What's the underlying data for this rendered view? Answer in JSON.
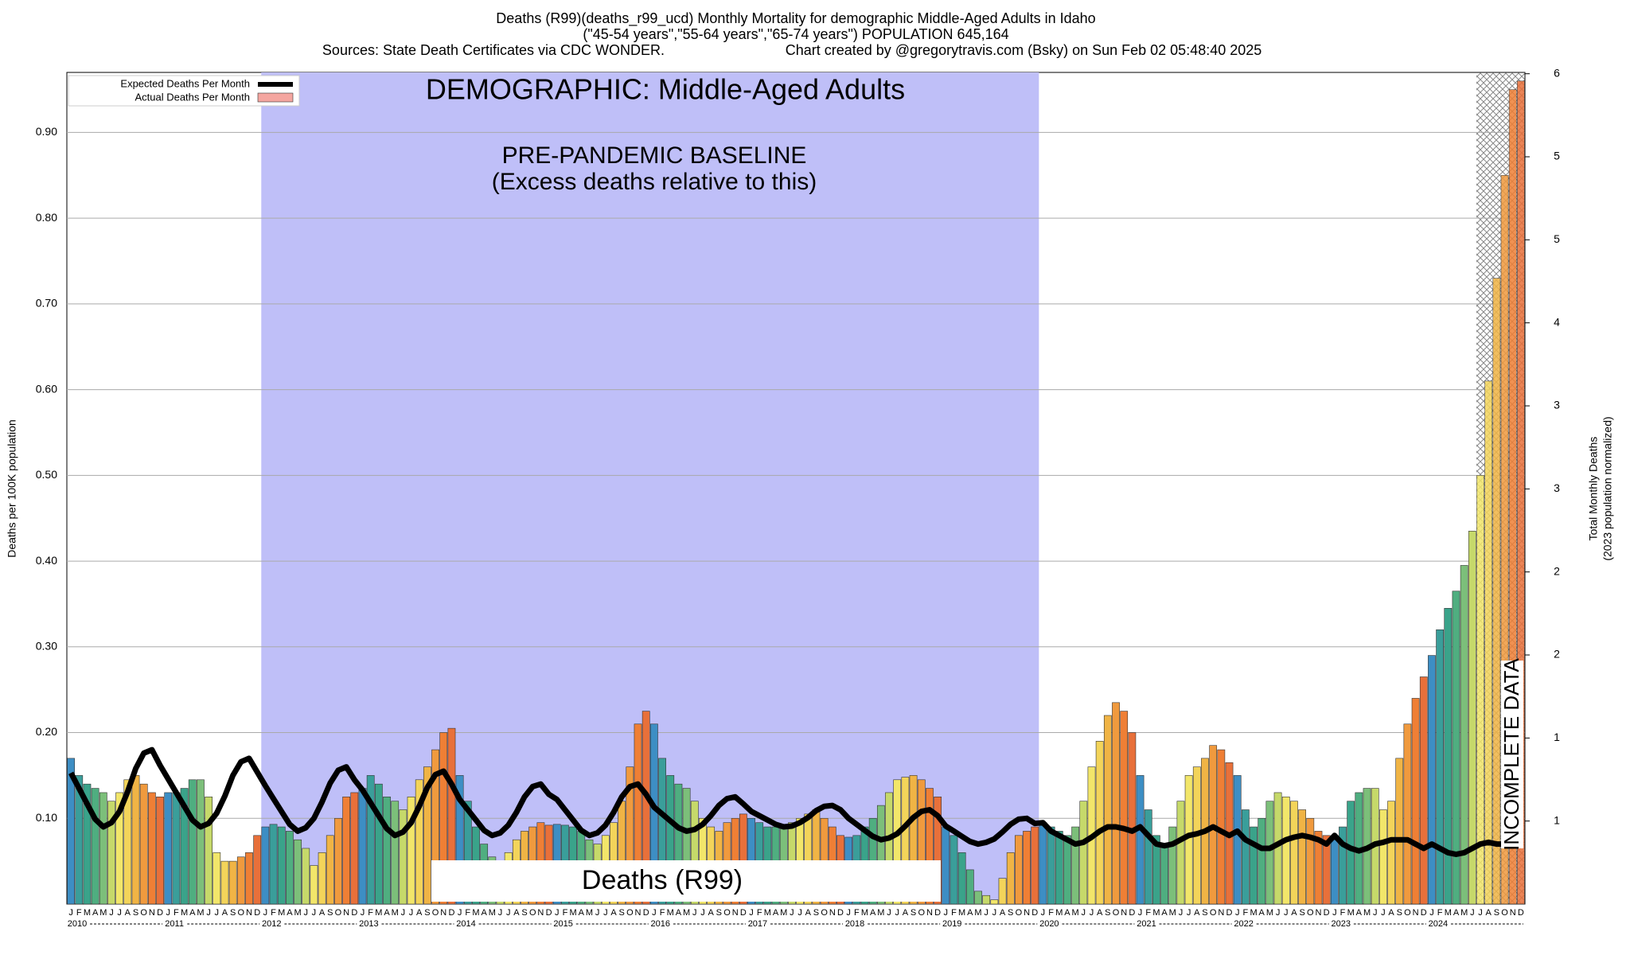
{
  "chart_data": {
    "type": "bar",
    "title": "Deaths (R99)(deaths_r99_ucd) Monthly Mortality for demographic Middle-Aged Adults in Idaho",
    "subtitle": "(\"45-54 years\",\"55-64 years\",\"65-74 years\") POPULATION 645,164",
    "sources": "Sources: State Death Certificates via CDC WONDER.",
    "credit": "Chart created by @gregorytravis.com (Bsky) on Sun Feb 02 05:48:40 2025",
    "ylabel": "Deaths per 100K population",
    "y2label": [
      "Total Monthly Deaths",
      "(2023 population normalized)"
    ],
    "annotations": {
      "demographic": "DEMOGRAPHIC: Middle-Aged Adults",
      "baseline": [
        "PRE-PANDEMIC BASELINE",
        "(Excess deaths relative to this)"
      ],
      "cause": "Deaths (R99)",
      "incomplete": "INCOMPLETE DATA"
    },
    "categories": [
      "J",
      "F",
      "M",
      "A",
      "M",
      "J",
      "J",
      "A",
      "S",
      "O",
      "N",
      "D",
      "J",
      "F",
      "M",
      "A",
      "M",
      "J",
      "J",
      "A",
      "S",
      "O",
      "N",
      "D",
      "J",
      "F",
      "M",
      "A",
      "M",
      "J",
      "J",
      "A",
      "S",
      "O",
      "N",
      "D",
      "J",
      "F",
      "M",
      "A",
      "M",
      "J",
      "J",
      "A",
      "S",
      "O",
      "N",
      "D",
      "J",
      "F",
      "M",
      "A",
      "M",
      "J",
      "J",
      "A",
      "S",
      "O",
      "N",
      "D",
      "J",
      "F",
      "M",
      "A",
      "M",
      "J",
      "J",
      "A",
      "S",
      "O",
      "N",
      "D",
      "J",
      "F",
      "M",
      "A",
      "M",
      "J",
      "J",
      "A",
      "S",
      "O",
      "N",
      "D",
      "J",
      "F",
      "M",
      "A",
      "M",
      "J",
      "J",
      "A",
      "S",
      "O",
      "N",
      "D",
      "J",
      "F",
      "M",
      "A",
      "M",
      "J",
      "J",
      "A",
      "S",
      "O",
      "N",
      "D",
      "J",
      "F",
      "M",
      "A",
      "M",
      "J",
      "J",
      "A",
      "S",
      "O",
      "N",
      "D",
      "J",
      "F",
      "M",
      "A",
      "M",
      "J",
      "J",
      "A",
      "S",
      "O",
      "N",
      "D",
      "J",
      "F",
      "M",
      "A",
      "M",
      "J",
      "J",
      "A",
      "S",
      "O",
      "N",
      "D",
      "J",
      "F",
      "M",
      "A",
      "M",
      "J",
      "J",
      "A",
      "S",
      "O",
      "N",
      "D",
      "J",
      "F",
      "M",
      "A",
      "M",
      "J",
      "J",
      "A",
      "S",
      "O",
      "N",
      "D",
      "J",
      "F",
      "M",
      "A",
      "M",
      "J",
      "J",
      "A",
      "S",
      "O",
      "N",
      "D"
    ],
    "years": [
      "2010",
      "2011",
      "2012",
      "2013",
      "2014",
      "2015",
      "2016",
      "2017",
      "2018",
      "2019",
      "2020",
      "2021",
      "2022",
      "2023",
      "2024"
    ],
    "month_colors": [
      "#3d8ec4",
      "#3a9e9a",
      "#3aa38a",
      "#4fae80",
      "#7cbf7a",
      "#c6d96a",
      "#f2e66a",
      "#f3d45a",
      "#f0b445",
      "#f09a3e",
      "#ef7f35",
      "#e8703a"
    ],
    "series": [
      {
        "name": "Expected Deaths Per Month",
        "color": "#000000",
        "values": [
          0.153,
          0.135,
          0.117,
          0.099,
          0.09,
          0.095,
          0.108,
          0.131,
          0.158,
          0.176,
          0.18,
          0.162,
          0.146,
          0.13,
          0.114,
          0.098,
          0.09,
          0.094,
          0.106,
          0.126,
          0.15,
          0.166,
          0.17,
          0.154,
          0.138,
          0.123,
          0.108,
          0.093,
          0.085,
          0.089,
          0.1,
          0.119,
          0.141,
          0.156,
          0.16,
          0.145,
          0.133,
          0.118,
          0.103,
          0.088,
          0.08,
          0.084,
          0.095,
          0.114,
          0.136,
          0.151,
          0.155,
          0.14,
          0.122,
          0.11,
          0.098,
          0.086,
          0.08,
          0.083,
          0.092,
          0.107,
          0.125,
          0.137,
          0.14,
          0.128,
          0.122,
          0.11,
          0.098,
          0.086,
          0.08,
          0.083,
          0.092,
          0.107,
          0.125,
          0.137,
          0.14,
          0.128,
          0.113,
          0.105,
          0.097,
          0.089,
          0.085,
          0.087,
          0.093,
          0.103,
          0.115,
          0.123,
          0.125,
          0.117,
          0.108,
          0.103,
          0.098,
          0.093,
          0.09,
          0.091,
          0.095,
          0.101,
          0.109,
          0.114,
          0.115,
          0.11,
          0.1,
          0.093,
          0.086,
          0.079,
          0.075,
          0.077,
          0.082,
          0.091,
          0.101,
          0.108,
          0.11,
          0.103,
          0.091,
          0.085,
          0.079,
          0.073,
          0.07,
          0.072,
          0.076,
          0.084,
          0.093,
          0.099,
          0.1,
          0.094,
          0.095,
          0.085,
          0.08,
          0.075,
          0.07,
          0.072,
          0.078,
          0.085,
          0.09,
          0.09,
          0.088,
          0.085,
          0.09,
          0.08,
          0.07,
          0.068,
          0.07,
          0.075,
          0.08,
          0.082,
          0.085,
          0.09,
          0.085,
          0.08,
          0.085,
          0.075,
          0.07,
          0.065,
          0.065,
          0.07,
          0.075,
          0.078,
          0.08,
          0.078,
          0.075,
          0.07,
          0.08,
          0.07,
          0.065,
          0.062,
          0.065,
          0.07,
          0.072,
          0.075,
          0.075,
          0.075,
          0.07,
          0.065,
          0.07,
          0.065,
          0.06,
          0.058,
          0.06,
          0.065,
          0.07,
          0.072,
          0.07,
          0.07,
          0.068,
          0.07
        ]
      },
      {
        "name": "Actual Deaths Per Month",
        "color": "#f4a6a0",
        "values": [
          0.17,
          0.15,
          0.14,
          0.135,
          0.13,
          0.12,
          0.13,
          0.145,
          0.15,
          0.14,
          0.13,
          0.125,
          0.13,
          0.13,
          0.135,
          0.145,
          0.145,
          0.125,
          0.06,
          0.05,
          0.05,
          0.055,
          0.06,
          0.08,
          0.09,
          0.093,
          0.09,
          0.085,
          0.075,
          0.065,
          0.045,
          0.06,
          0.08,
          0.1,
          0.125,
          0.13,
          0.135,
          0.15,
          0.14,
          0.125,
          0.12,
          0.11,
          0.125,
          0.145,
          0.16,
          0.18,
          0.2,
          0.205,
          0.15,
          0.12,
          0.09,
          0.07,
          0.055,
          0.05,
          0.06,
          0.075,
          0.085,
          0.09,
          0.095,
          0.092,
          0.093,
          0.092,
          0.09,
          0.085,
          0.075,
          0.07,
          0.08,
          0.095,
          0.12,
          0.16,
          0.21,
          0.225,
          0.21,
          0.17,
          0.15,
          0.14,
          0.135,
          0.12,
          0.1,
          0.09,
          0.085,
          0.095,
          0.1,
          0.105,
          0.1,
          0.095,
          0.09,
          0.09,
          0.092,
          0.095,
          0.1,
          0.105,
          0.11,
          0.1,
          0.09,
          0.08,
          0.078,
          0.08,
          0.09,
          0.1,
          0.115,
          0.13,
          0.145,
          0.148,
          0.15,
          0.145,
          0.135,
          0.125,
          0.09,
          0.08,
          0.06,
          0.04,
          0.015,
          0.01,
          0.005,
          0.03,
          0.06,
          0.08,
          0.085,
          0.09,
          0.095,
          0.09,
          0.085,
          0.08,
          0.09,
          0.12,
          0.16,
          0.19,
          0.22,
          0.235,
          0.225,
          0.2,
          0.15,
          0.11,
          0.08,
          0.07,
          0.09,
          0.12,
          0.15,
          0.16,
          0.17,
          0.185,
          0.18,
          0.165,
          0.15,
          0.11,
          0.09,
          0.1,
          0.12,
          0.13,
          0.125,
          0.12,
          0.11,
          0.1,
          0.085,
          0.08,
          0.075,
          0.09,
          0.12,
          0.13,
          0.135,
          0.135,
          0.11,
          0.12,
          0.17,
          0.21,
          0.24,
          0.265,
          0.29,
          0.32,
          0.345,
          0.365,
          0.395,
          0.435,
          0.5,
          0.61,
          0.73,
          0.85,
          0.95,
          0.96
        ]
      }
    ],
    "ylim": [
      0,
      0.97
    ],
    "yticks": [
      {
        "value": 0.1,
        "label": "0.10"
      },
      {
        "value": 0.2,
        "label": "0.20"
      },
      {
        "value": 0.3,
        "label": "0.30"
      },
      {
        "value": 0.4,
        "label": "0.40"
      },
      {
        "value": 0.5,
        "label": "0.50"
      },
      {
        "value": 0.6,
        "label": "0.60"
      },
      {
        "value": 0.7,
        "label": "0.70"
      },
      {
        "value": 0.8,
        "label": "0.80"
      },
      {
        "value": 0.9,
        "label": "0.90"
      }
    ],
    "y2lim": [
      0,
      6.26
    ],
    "y2ticks": [
      {
        "value": 0.625,
        "label": "1"
      },
      {
        "value": 1.25,
        "label": "1"
      },
      {
        "value": 1.875,
        "label": "2"
      },
      {
        "value": 2.5,
        "label": "2"
      },
      {
        "value": 3.125,
        "label": "3"
      },
      {
        "value": 3.75,
        "label": "3"
      },
      {
        "value": 4.375,
        "label": "4"
      },
      {
        "value": 5,
        "label": "5"
      },
      {
        "value": 5.625,
        "label": "5"
      },
      {
        "value": 6.25,
        "label": "6"
      }
    ],
    "grid": true,
    "legend": "upper left"
  }
}
